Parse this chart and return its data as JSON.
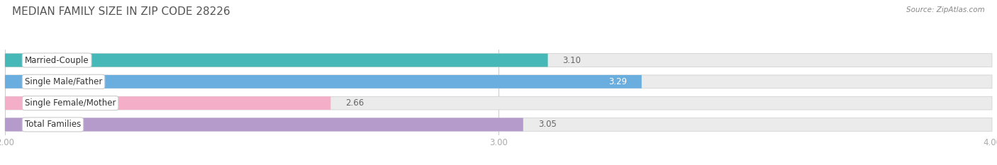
{
  "title": "MEDIAN FAMILY SIZE IN ZIP CODE 28226",
  "source": "Source: ZipAtlas.com",
  "categories": [
    "Married-Couple",
    "Single Male/Father",
    "Single Female/Mother",
    "Total Families"
  ],
  "values": [
    3.1,
    3.29,
    2.66,
    3.05
  ],
  "bar_colors": [
    "#47b8b8",
    "#6aaee0",
    "#f5aec8",
    "#b49bcc"
  ],
  "xlim": [
    2.0,
    4.0
  ],
  "xmin": 2.0,
  "xmax": 4.0,
  "xticks": [
    2.0,
    3.0,
    4.0
  ],
  "xtick_labels": [
    "2.00",
    "3.00",
    "4.00"
  ],
  "background_color": "#ffffff",
  "bar_bg_color": "#ebebeb",
  "title_fontsize": 11,
  "label_fontsize": 8.5,
  "value_fontsize": 8.5,
  "bar_height": 0.62,
  "bar_gap": 0.15
}
